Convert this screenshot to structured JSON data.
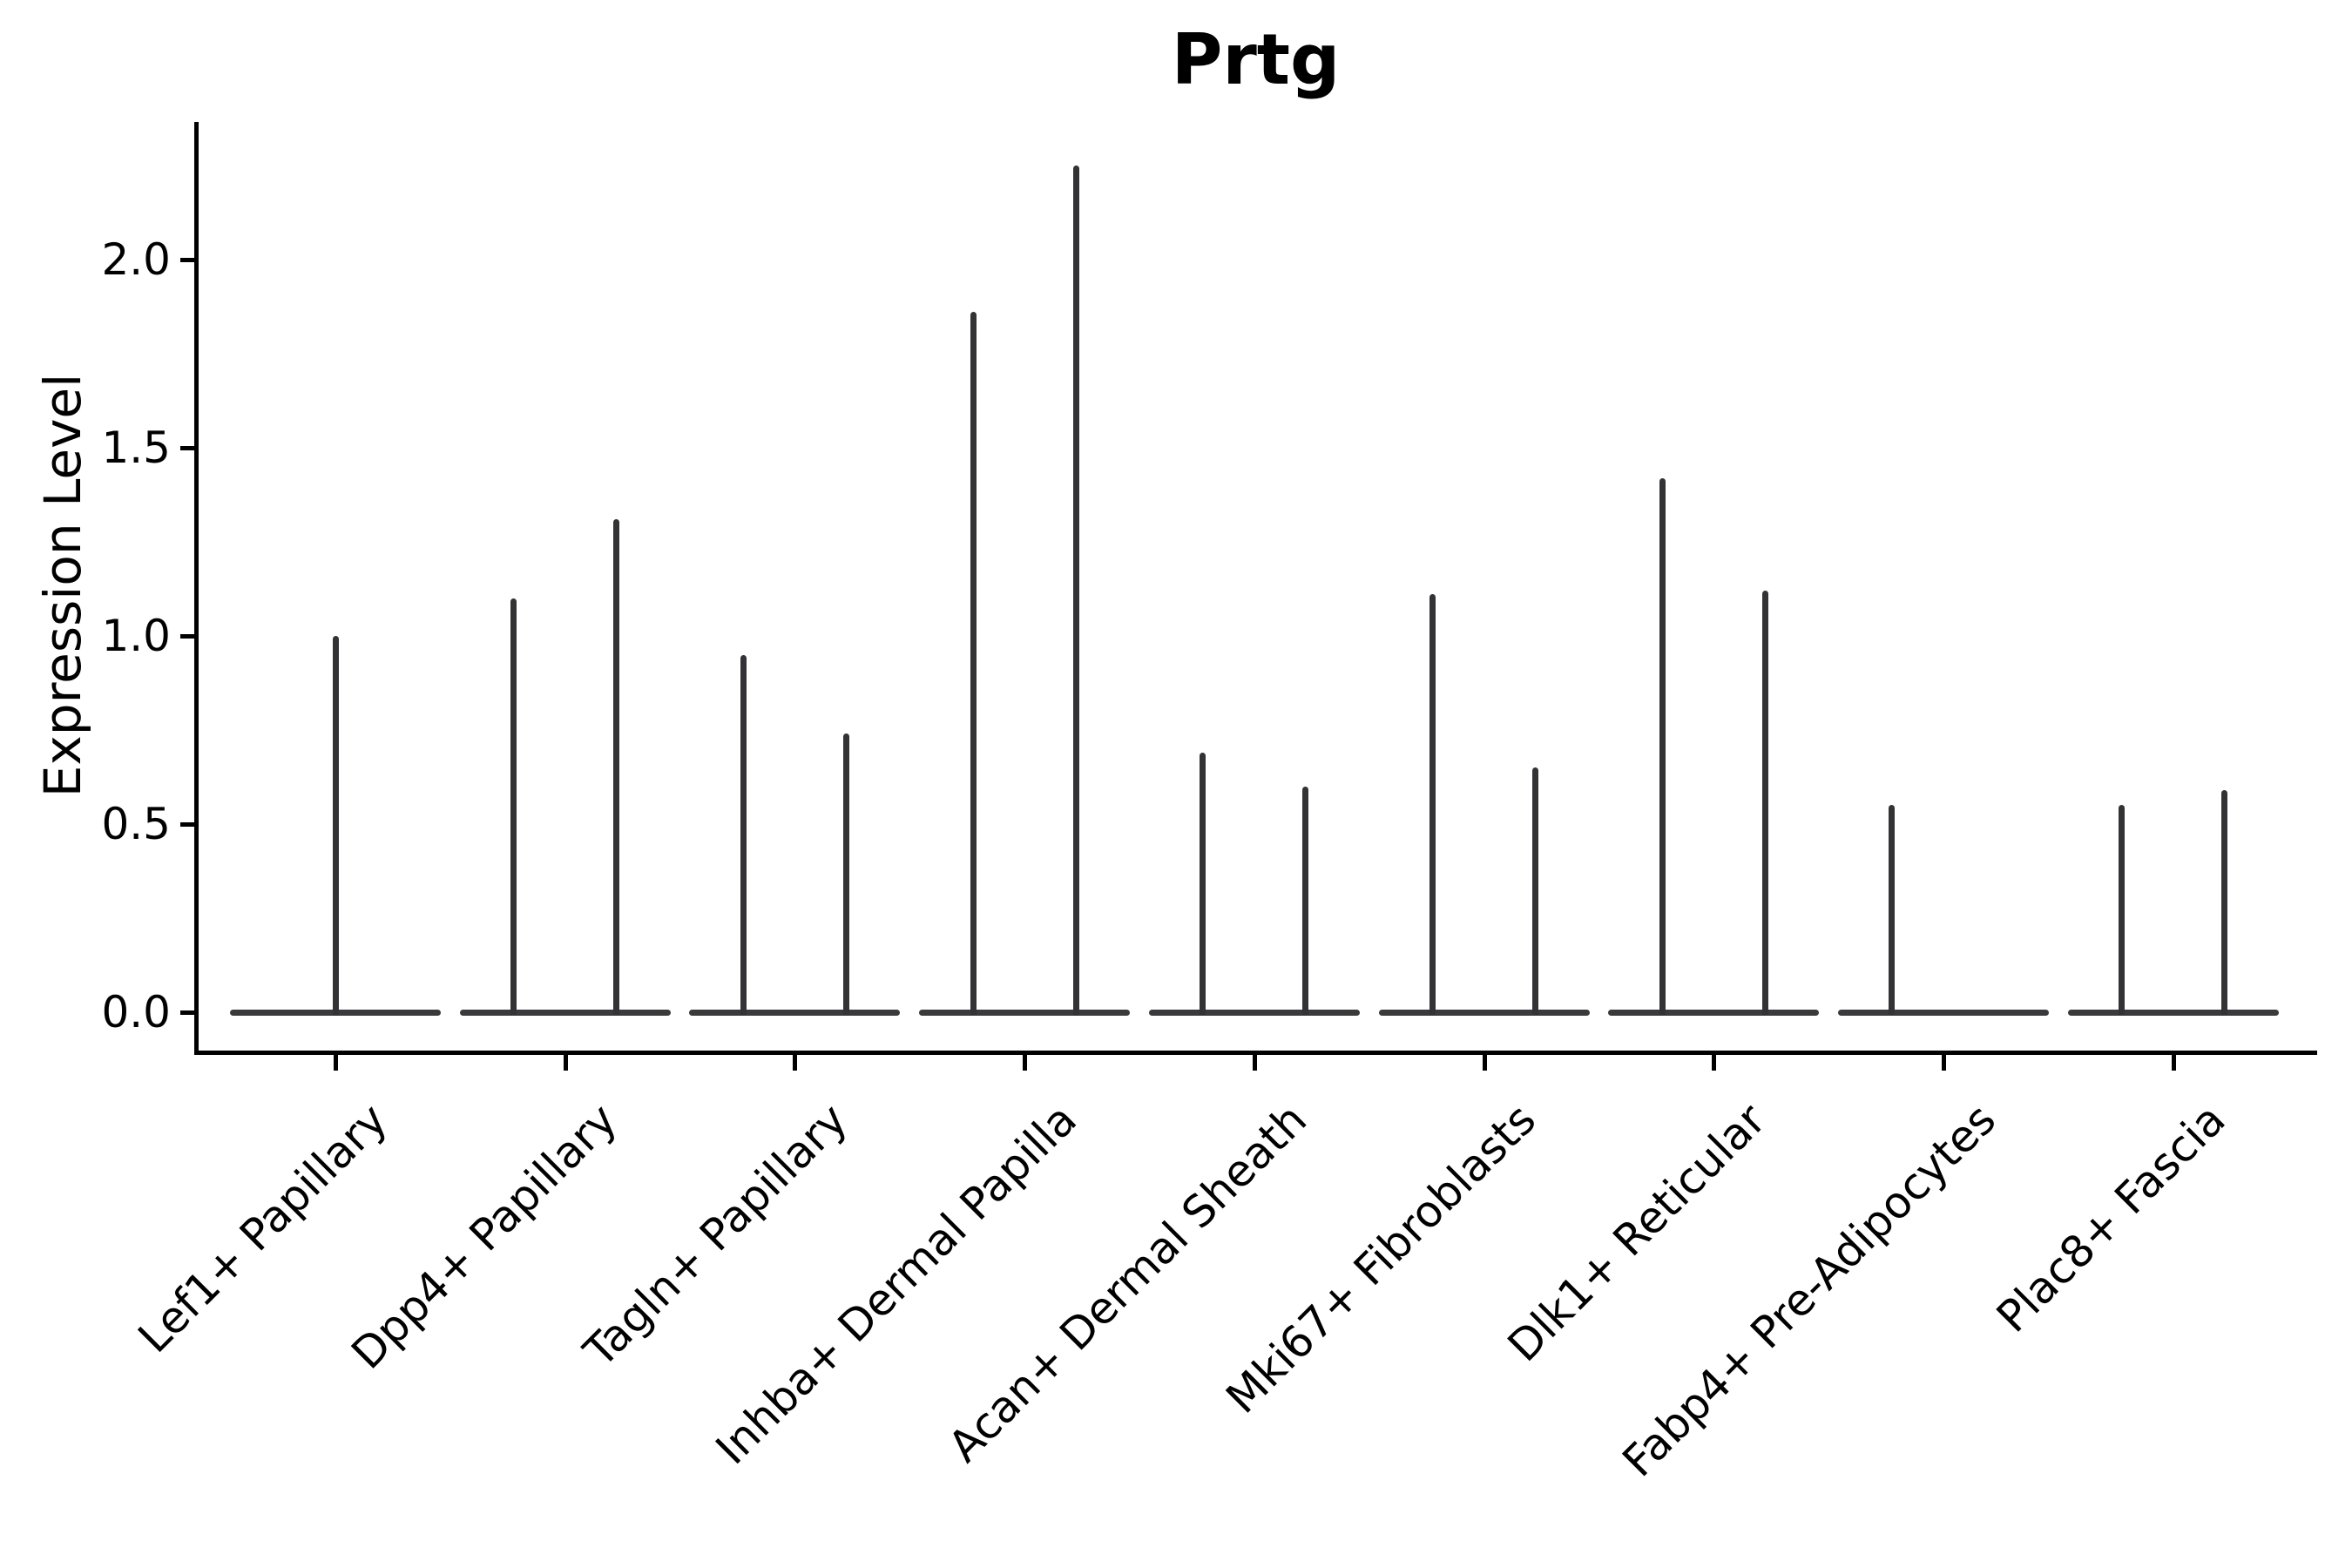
{
  "colors": {
    "violin_line": "#333336",
    "violin_base_line": "#3a3a3c",
    "axis": "#000000",
    "background": "#ffffff"
  },
  "chart_data": {
    "type": "violin",
    "title": "Prtg",
    "ylabel": "Expression Level",
    "xlabel": "",
    "legend": "none",
    "grid": false,
    "ylim": [
      -0.1,
      2.37
    ],
    "yticks": [
      0.0,
      0.5,
      1.0,
      1.5,
      2.0
    ],
    "ytick_labels": [
      "0.0",
      "0.5",
      "1.0",
      "1.5",
      "2.0"
    ],
    "categories": [
      "Lef1+ Papillary",
      "Dpp4+ Papillary",
      "Tagln+ Papillary",
      "Inhba+ Dermal Papilla",
      "Acan+ Dermal Sheath",
      "Mki67+ Fibroblasts",
      "Dlk1+ Reticular",
      "Fabp4+ Pre-Adipocytes",
      "Plac8+ Fascia"
    ],
    "violins": [
      {
        "category": "Lef1+ Papillary",
        "position": "center",
        "max_expression": 1.0
      },
      {
        "category": "Dpp4+ Papillary",
        "position": "left",
        "max_expression": 1.1
      },
      {
        "category": "Dpp4+ Papillary",
        "position": "right",
        "max_expression": 1.31
      },
      {
        "category": "Tagln+ Papillary",
        "position": "left",
        "max_expression": 0.95
      },
      {
        "category": "Tagln+ Papillary",
        "position": "right",
        "max_expression": 0.74
      },
      {
        "category": "Inhba+ Dermal Papilla",
        "position": "left",
        "max_expression": 1.86
      },
      {
        "category": "Inhba+ Dermal Papilla",
        "position": "right",
        "max_expression": 2.25
      },
      {
        "category": "Acan+ Dermal Sheath",
        "position": "left",
        "max_expression": 0.69
      },
      {
        "category": "Acan+ Dermal Sheath",
        "position": "right",
        "max_expression": 0.6
      },
      {
        "category": "Mki67+ Fibroblasts",
        "position": "left",
        "max_expression": 1.11
      },
      {
        "category": "Mki67+ Fibroblasts",
        "position": "right",
        "max_expression": 0.65
      },
      {
        "category": "Dlk1+ Reticular",
        "position": "left",
        "max_expression": 1.42
      },
      {
        "category": "Dlk1+ Reticular",
        "position": "right",
        "max_expression": 1.12
      },
      {
        "category": "Fabp4+ Pre-Adipocytes",
        "position": "left",
        "max_expression": 0.55
      },
      {
        "category": "Fabp4+ Pre-Adipocytes",
        "position": "right",
        "max_expression": 0.0
      },
      {
        "category": "Plac8+ Fascia",
        "position": "left",
        "max_expression": 0.55
      },
      {
        "category": "Plac8+ Fascia",
        "position": "right",
        "max_expression": 0.59
      }
    ]
  }
}
